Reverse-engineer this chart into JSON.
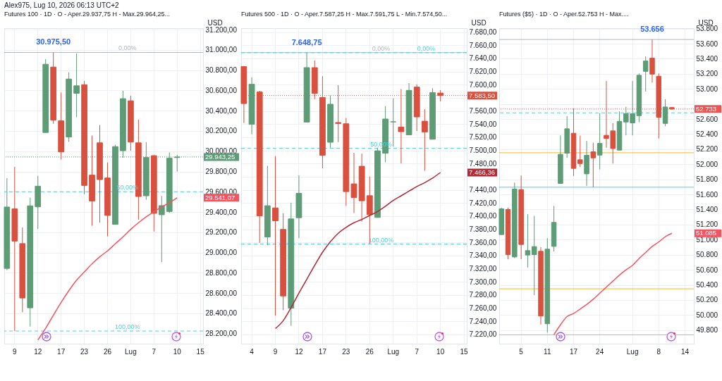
{
  "chart_data": [
    {
      "type": "candlestick",
      "title": "Futures 100 · 1D · O - Aper.29.937,75  H - Max.29.964,25...",
      "ylabel": "USD",
      "categories": [
        null,
        "9",
        null,
        null,
        "12",
        null,
        null,
        "17",
        null,
        null,
        "23",
        null,
        null,
        "26",
        null,
        null,
        "Lug",
        null,
        null,
        "7",
        null,
        null,
        "10",
        null,
        null,
        "15"
      ],
      "ohlc": [
        [
          28843,
          29734,
          28826,
          29449
        ],
        [
          29431,
          29845,
          28225,
          29113
        ],
        [
          29088,
          29248,
          28410,
          28551
        ],
        [
          28454,
          29542,
          28269,
          29461
        ],
        [
          29451,
          29757,
          29232,
          29655
        ],
        [
          30185,
          30910,
          30185,
          30859
        ],
        [
          30831,
          30975.5,
          30271,
          30308
        ],
        [
          30301,
          30579,
          29919,
          29993
        ],
        [
          30141,
          30778,
          30093,
          30713
        ],
        [
          30572,
          30965,
          30336,
          30646
        ],
        [
          30657,
          30694,
          29576,
          29662
        ],
        [
          29764,
          30155,
          29264,
          29509
        ],
        [
          30083,
          30259,
          29294,
          29720
        ],
        [
          29736,
          29889,
          29160,
          29366
        ],
        [
          29278,
          30063,
          29278,
          30046
        ],
        [
          30005,
          30597,
          29935,
          30519
        ],
        [
          30498,
          30549,
          30005,
          30090
        ],
        [
          30083,
          30312,
          29324,
          29553
        ],
        [
          29560,
          30090,
          29521,
          29938
        ],
        [
          29956,
          29965,
          29208,
          29387
        ],
        [
          29373,
          29558,
          28905,
          29463
        ],
        [
          29405,
          29988,
          29391,
          29931
        ],
        [
          29937.75,
          29964.25,
          29799,
          29943.25
        ],
        null,
        null,
        null
      ],
      "series": [
        {
          "type": "line",
          "color": "#f7525f",
          "values": [
            null,
            null,
            null,
            null,
            28137,
            28252,
            28380,
            28507,
            28623,
            28727,
            28808,
            28889,
            28958,
            29016,
            29086,
            29155,
            29229,
            29294,
            29352,
            29403,
            29449,
            29493,
            29541.07,
            null,
            null,
            null
          ]
        }
      ],
      "ylim": [
        28100,
        31215
      ],
      "yticks": [
        {
          "value": 28200,
          "label": "28.200,00"
        },
        {
          "value": 28400,
          "label": "28.400,00"
        },
        {
          "value": 28600,
          "label": "28.600,00"
        },
        {
          "value": 28800,
          "label": "28.800,00"
        },
        {
          "value": 29000,
          "label": "29.000,00"
        },
        {
          "value": 29200,
          "label": "29.200,00"
        },
        {
          "value": 29400,
          "label": "29.400,00"
        },
        {
          "value": 29600,
          "label": "29.600,00"
        },
        {
          "value": 29800,
          "label": "29.800,00"
        },
        {
          "value": 30000,
          "label": "30.000,00"
        },
        {
          "value": 30200,
          "label": "30.200,00"
        },
        {
          "value": 30400,
          "label": "30.400,00"
        },
        {
          "value": 30600,
          "label": "30.600,00"
        },
        {
          "value": 30800,
          "label": "30.800,00"
        },
        {
          "value": 31000,
          "label": "31.000,00"
        },
        {
          "value": 31200,
          "label": "31.200,00"
        }
      ],
      "ref_lines": [
        {
          "axis": "y",
          "value": 30975.5,
          "color": "#b2b5be"
        },
        {
          "axis": "y",
          "value": 29600,
          "color": "#4dd0e1",
          "line_style": "dashed"
        },
        {
          "axis": "y",
          "value": 28225,
          "color": "#4dd0e1",
          "line_style": "dashed"
        },
        {
          "axis": "y",
          "value": 29943.25,
          "label": "29.943,25",
          "color": "#5d9c76",
          "line_style": "dotted"
        }
      ],
      "annotations": [
        "Alex975, Lug 10, 2026 06:13 UTC+2",
        {
          "text": "30.975,50",
          "y": 30975.5
        },
        {
          "text": "0,00%",
          "y": 30975.5
        },
        {
          "text": "50,00%",
          "y": 29600
        },
        {
          "text": "100,00%",
          "y": 28225
        },
        "29.541,07"
      ],
      "grid": true
    },
    {
      "type": "candlestick",
      "title": "Futures 500 · 1D · O - Aper.7.587,25  H - Max.7.591,75  L - Min.7.574,50...",
      "ylabel": "USD",
      "categories": [
        null,
        "4",
        null,
        null,
        "9",
        null,
        null,
        "12",
        null,
        null,
        "17",
        null,
        null,
        "23",
        null,
        null,
        "26",
        null,
        null,
        "Lug",
        null,
        null,
        "7",
        null,
        null,
        "10",
        null,
        null,
        "15"
      ],
      "ohlc": [
        [
          7627.5,
          7627.5,
          7541.7,
          7571.3
        ],
        [
          7539.9,
          7611.4,
          7524.5,
          7600.6
        ],
        [
          7588.9,
          7590.6,
          7359.4,
          7400.5
        ],
        [
          7368.3,
          7476.6,
          7355.8,
          7415.9
        ],
        [
          7412.6,
          7491.3,
          7248.6,
          7393
        ],
        [
          7379.8,
          7404.4,
          7256.8,
          7278.6
        ],
        [
          7260,
          7420.5,
          7233.2,
          7395.8
        ],
        [
          7397.6,
          7462,
          7366.5,
          7434.8
        ],
        [
          7543.1,
          7648.75,
          7543.1,
          7626
        ],
        [
          7626,
          7636.8,
          7578.1,
          7586.7
        ],
        [
          7580.6,
          7612.8,
          7472.7,
          7492.7
        ],
        [
          7512.4,
          7583.5,
          7504.1,
          7570.3
        ],
        [
          7542.4,
          7599.2,
          7512.7,
          7541
        ],
        [
          7540.6,
          7549.2,
          7415.5,
          7437.3
        ],
        [
          7449.1,
          7496.3,
          7404.8,
          7428.4
        ],
        [
          7475.9,
          7495.2,
          7391.6,
          7423.4
        ],
        [
          7431.2,
          7460.2,
          7357.6,
          7402.3
        ],
        [
          7398,
          7504.1,
          7398,
          7499.5
        ],
        [
          7495.9,
          7567.4,
          7482,
          7547.8
        ],
        [
          7543.5,
          7579.2,
          7505.9,
          7543.5
        ],
        [
          7535.6,
          7593.5,
          7480.2,
          7528.5
        ],
        [
          7523.8,
          7602.4,
          7523.8,
          7591.4
        ],
        [
          7596.4,
          7600.6,
          7529.5,
          7551
        ],
        [
          7544.5,
          7562.8,
          7469.1,
          7528.1
        ],
        [
          7517,
          7594.6,
          7517,
          7588.1
        ],
        [
          7587.25,
          7591.75,
          7574.5,
          7583.5
        ],
        null,
        null,
        null
      ],
      "series": [
        {
          "type": "line",
          "color": "#b22833",
          "values": [
            null,
            null,
            null,
            null,
            7229,
            7241,
            7261,
            7283,
            7304,
            7325,
            7345,
            7361,
            7374,
            7383,
            7390,
            7395,
            7401,
            7407,
            7415,
            7424,
            7431,
            7438,
            7445,
            7451,
            7458,
            7466.36,
            null,
            null,
            null
          ]
        }
      ],
      "ylim": [
        7206,
        7686
      ],
      "yticks": [
        {
          "value": 7220,
          "label": "7.220,00"
        },
        {
          "value": 7240,
          "label": "7.240,00"
        },
        {
          "value": 7260,
          "label": "7.260,00"
        },
        {
          "value": 7280,
          "label": "7.280,00"
        },
        {
          "value": 7300,
          "label": "7.300,00"
        },
        {
          "value": 7320,
          "label": "7.320,00"
        },
        {
          "value": 7340,
          "label": "7.340,00"
        },
        {
          "value": 7360,
          "label": "7.360,00"
        },
        {
          "value": 7380,
          "label": "7.380,00"
        },
        {
          "value": 7400,
          "label": "7.400,00"
        },
        {
          "value": 7420,
          "label": "7.420,00"
        },
        {
          "value": 7440,
          "label": "7.440,00"
        },
        {
          "value": 7460,
          "label": null
        },
        {
          "value": 7480,
          "label": "7.480,00"
        },
        {
          "value": 7500,
          "label": "7.500,00"
        },
        {
          "value": 7520,
          "label": "7.520,00"
        },
        {
          "value": 7540,
          "label": "7.540,00"
        },
        {
          "value": 7560,
          "label": "7.560,00"
        },
        {
          "value": 7580,
          "label": null
        },
        {
          "value": 7600,
          "label": "7.600,00"
        },
        {
          "value": 7620,
          "label": "7.620,00"
        },
        {
          "value": 7640,
          "label": "7.640,00"
        },
        {
          "value": 7660,
          "label": "7.660,00"
        },
        {
          "value": 7680,
          "label": "7.680,00"
        }
      ],
      "ref_lines": [
        {
          "axis": "y",
          "value": 7648.75,
          "color": "#b2b5be"
        },
        {
          "axis": "y",
          "value": 7648.75,
          "color": "#4dd0e1",
          "line_style": "dashed"
        },
        {
          "axis": "y",
          "value": 7503.2,
          "color": "#4dd0e1",
          "line_style": "dashed"
        },
        {
          "axis": "y",
          "value": 7357.6,
          "color": "#4dd0e1",
          "line_style": "dashed"
        },
        {
          "axis": "y",
          "value": 7583.5,
          "label": "7.583,50",
          "color": "#d9503f",
          "line_style": "dotted"
        }
      ],
      "annotations": [
        {
          "text": "7.648,75",
          "y": 7648.75
        },
        {
          "text": "0,00%",
          "y": 7648.75
        },
        {
          "text": "0,00%",
          "y": 7648.75
        },
        {
          "text": "50,00%",
          "y": 7503.2
        },
        {
          "text": "100,00%",
          "y": 7357.6
        },
        "7.466,36"
      ],
      "grid": true
    },
    {
      "type": "candlestick",
      "title": "Futures ($5) · 1D · O - Aper.52.753  H - Max....",
      "ylabel": "USD",
      "categories": [
        null,
        null,
        null,
        "5",
        null,
        null,
        null,
        "11",
        null,
        null,
        null,
        "17",
        null,
        null,
        null,
        "24",
        null,
        null,
        null,
        null,
        "Lug",
        null,
        null,
        null,
        "8",
        null,
        null,
        null,
        "14",
        null
      ],
      "ohlc": [
        [
          51067,
          51425,
          51067,
          51409
        ],
        [
          51400,
          51425,
          50740,
          50802
        ],
        [
          50771,
          51758,
          50756,
          51671
        ],
        [
          51665,
          51851,
          50740,
          50936
        ],
        [
          50796,
          51338,
          50631,
          50855
        ],
        [
          50802,
          51316,
          50264,
          50908
        ],
        [
          50846,
          50902,
          49875,
          49987
        ],
        [
          49884,
          51020,
          49766,
          50874
        ],
        [
          50911,
          51447,
          50843,
          51229
        ],
        [
          51746,
          52384,
          51746,
          52132
        ],
        [
          52147,
          52639,
          52085,
          52471
        ],
        [
          52412,
          52742,
          51845,
          51945
        ],
        [
          52060,
          52381,
          51963,
          52010
        ],
        [
          51873,
          52309,
          51714,
          52119
        ],
        [
          52166,
          52287,
          51696,
          52085
        ],
        [
          52122,
          52676,
          51932,
          52278
        ],
        [
          52384,
          53106,
          52219,
          52343
        ],
        [
          52443,
          52546,
          52010,
          52209
        ],
        [
          52188,
          52701,
          52188,
          52570
        ],
        [
          52561,
          52763,
          52384,
          52673
        ],
        [
          52549,
          53106,
          52384,
          52670
        ],
        [
          52645,
          53205,
          52558,
          53181
        ],
        [
          53233,
          53433,
          52966,
          53370
        ],
        [
          53408,
          53656,
          53084,
          53196
        ],
        [
          53168,
          53205,
          52343,
          52623
        ],
        [
          52542,
          52863,
          52505,
          52760
        ],
        [
          52753,
          52760,
          52725,
          52733
        ],
        null,
        null,
        null
      ],
      "series": [
        {
          "type": "line",
          "color": "#f7525f",
          "values": [
            null,
            null,
            null,
            null,
            null,
            null,
            null,
            null,
            49740,
            49870,
            49980,
            50020,
            50080,
            50140,
            50210,
            50290,
            50370,
            50450,
            50530,
            50600,
            50660,
            50750,
            50830,
            50910,
            50970,
            51040,
            51085,
            null,
            null,
            null
          ]
        }
      ],
      "ylim": [
        49620,
        53806
      ],
      "yticks": [
        {
          "value": 49800,
          "label": "49.800"
        },
        {
          "value": 50000,
          "label": "50.000"
        },
        {
          "value": 50200,
          "label": "50.200"
        },
        {
          "value": 50400,
          "label": "50.400"
        },
        {
          "value": 50600,
          "label": "50.600"
        },
        {
          "value": 50800,
          "label": "50.800"
        },
        {
          "value": 51000,
          "label": "51.000"
        },
        {
          "value": 51200,
          "label": "51.200"
        },
        {
          "value": 51400,
          "label": "51.400"
        },
        {
          "value": 51600,
          "label": "51.600"
        },
        {
          "value": 51800,
          "label": "51.800"
        },
        {
          "value": 52000,
          "label": "52.000"
        },
        {
          "value": 52200,
          "label": "52.200"
        },
        {
          "value": 52400,
          "label": "52.400"
        },
        {
          "value": 52600,
          "label": "52.600"
        },
        {
          "value": 52800,
          "label": null
        },
        {
          "value": 53000,
          "label": "53.000"
        },
        {
          "value": 53200,
          "label": "53.200"
        },
        {
          "value": 53400,
          "label": "53.400"
        },
        {
          "value": 53600,
          "label": "53.600"
        },
        {
          "value": 53800,
          "label": "53.800"
        }
      ],
      "ref_lines": [
        {
          "axis": "y",
          "value": 53656,
          "color": "#b2b5be"
        },
        {
          "axis": "y",
          "value": 52683,
          "color": "#4dd0e1",
          "line_style": "dashed"
        },
        {
          "axis": "y",
          "value": 52153,
          "color": "#f5b82e"
        },
        {
          "axis": "y",
          "value": 51696,
          "color": "#4dd0e1"
        },
        {
          "axis": "y",
          "value": 50348,
          "color": "#f5b82e"
        },
        {
          "axis": "y",
          "value": 49738,
          "color": "#b2b5be"
        },
        {
          "axis": "y",
          "value": 52733,
          "label": "52.733",
          "color": "#f0524f",
          "line_style": "dotted"
        }
      ],
      "annotations": [
        {
          "text": "53.656",
          "y": 53656
        },
        "51.085"
      ],
      "grid": true
    }
  ]
}
